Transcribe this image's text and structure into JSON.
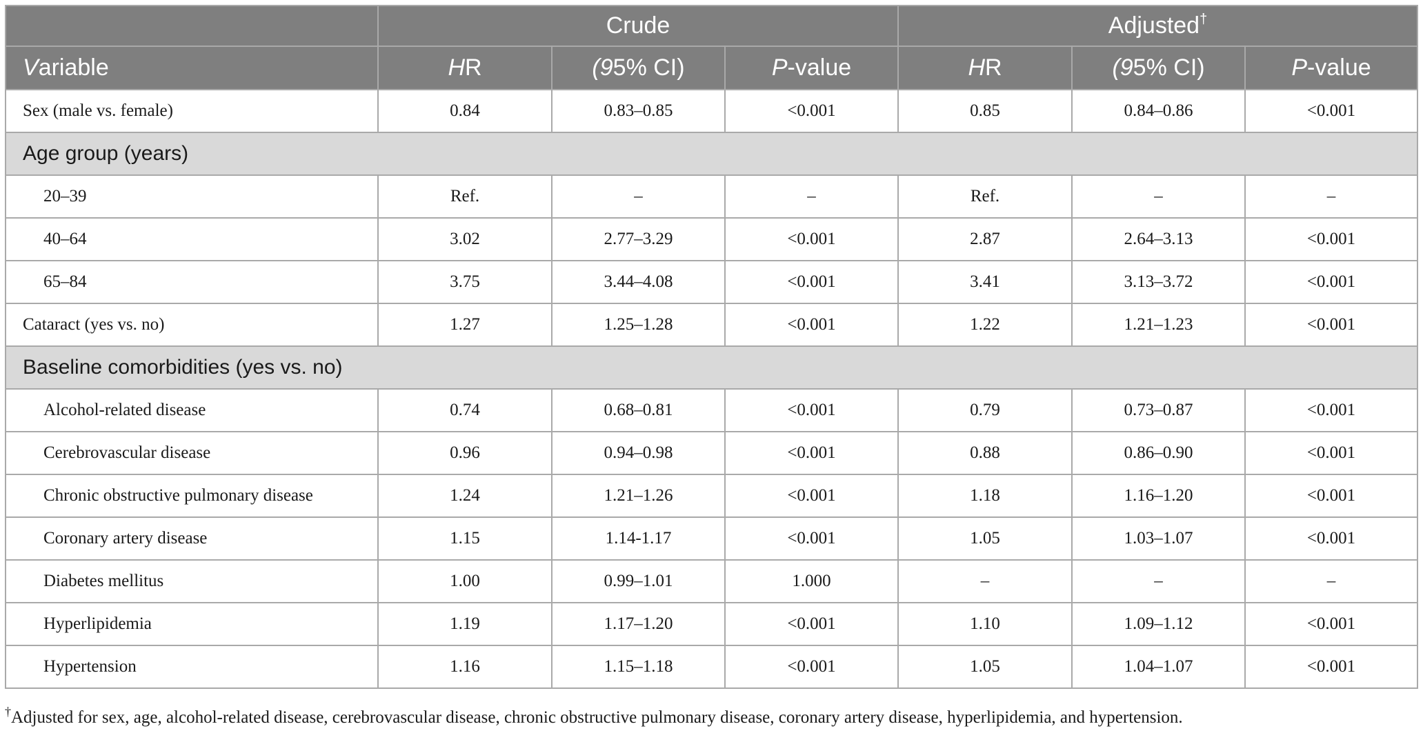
{
  "header": {
    "groups": [
      {
        "label": "Crude"
      },
      {
        "label": "Adjusted",
        "mark": "†"
      }
    ],
    "columns": [
      "Variable",
      "HR",
      "(95% CI)",
      "P-value",
      "HR",
      "(95% CI)",
      "P-value"
    ]
  },
  "rows": [
    {
      "label": "Sex (male vs. female)",
      "cells": [
        "0.84",
        "0.83–0.85",
        "<0.001",
        "0.85",
        "0.84–0.86",
        "<0.001"
      ]
    },
    {
      "section": "Age group (years)"
    },
    {
      "label": "20–39",
      "indent": true,
      "cells": [
        "Ref.",
        "–",
        "–",
        "Ref.",
        "–",
        "–"
      ]
    },
    {
      "label": "40–64",
      "indent": true,
      "cells": [
        "3.02",
        "2.77–3.29",
        "<0.001",
        "2.87",
        "2.64–3.13",
        "<0.001"
      ]
    },
    {
      "label": "65–84",
      "indent": true,
      "cells": [
        "3.75",
        "3.44–4.08",
        "<0.001",
        "3.41",
        "3.13–3.72",
        "<0.001"
      ]
    },
    {
      "label": "Cataract (yes vs. no)",
      "cells": [
        "1.27",
        "1.25–1.28",
        "<0.001",
        "1.22",
        "1.21–1.23",
        "<0.001"
      ]
    },
    {
      "section": "Baseline comorbidities (yes vs. no)"
    },
    {
      "label": "Alcohol-related disease",
      "indent": true,
      "cells": [
        "0.74",
        "0.68–0.81",
        "<0.001",
        "0.79",
        "0.73–0.87",
        "<0.001"
      ]
    },
    {
      "label": "Cerebrovascular disease",
      "indent": true,
      "cells": [
        "0.96",
        "0.94–0.98",
        "<0.001",
        "0.88",
        "0.86–0.90",
        "<0.001"
      ]
    },
    {
      "label": "Chronic obstructive pulmonary disease",
      "indent": true,
      "cells": [
        "1.24",
        "1.21–1.26",
        "<0.001",
        "1.18",
        "1.16–1.20",
        "<0.001"
      ]
    },
    {
      "label": "Coronary artery disease",
      "indent": true,
      "cells": [
        "1.15",
        "1.14-1.17",
        "<0.001",
        "1.05",
        "1.03–1.07",
        "<0.001"
      ]
    },
    {
      "label": "Diabetes mellitus",
      "indent": true,
      "cells": [
        "1.00",
        "0.99–1.01",
        "1.000",
        "–",
        "–",
        "–"
      ]
    },
    {
      "label": "Hyperlipidemia",
      "indent": true,
      "cells": [
        "1.19",
        "1.17–1.20",
        "<0.001",
        "1.10",
        "1.09–1.12",
        "<0.001"
      ]
    },
    {
      "label": "Hypertension",
      "indent": true,
      "cells": [
        "1.16",
        "1.15–1.18",
        "<0.001",
        "1.05",
        "1.04–1.07",
        "<0.001"
      ]
    }
  ],
  "footnote": {
    "mark": "†",
    "text": "Adjusted for sex, age, alcohol-related disease, cerebrovascular disease, chronic obstructive pulmonary disease, coronary artery disease, hyperlipidemia, and hypertension."
  }
}
